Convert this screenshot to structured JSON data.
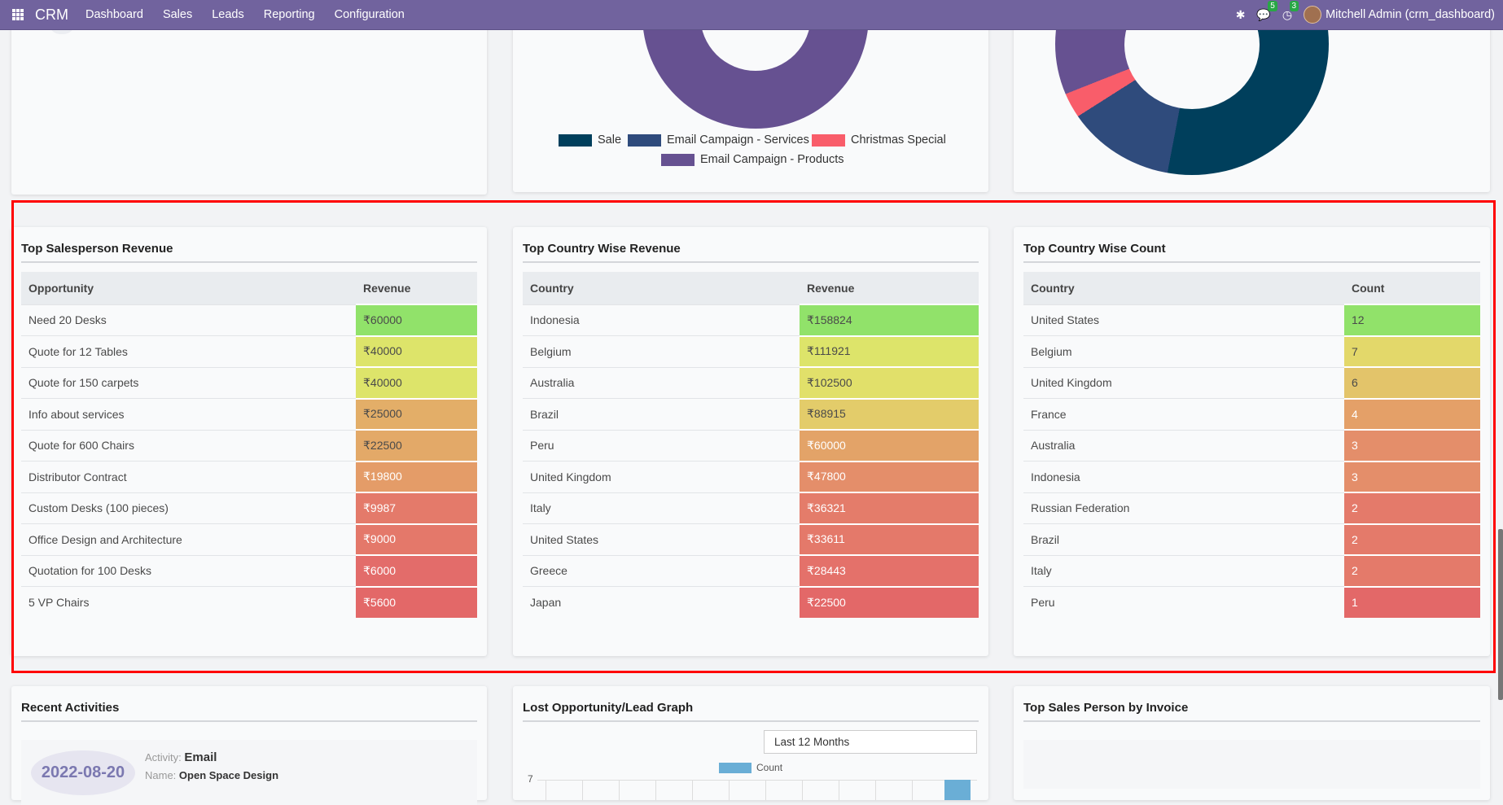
{
  "navbar": {
    "brand": "CRM",
    "menu": [
      "Dashboard",
      "Sales",
      "Leads",
      "Reporting",
      "Configuration"
    ],
    "messages_count": "5",
    "activities_count": "3",
    "user": "Mitchell Admin (crm_dashboard)"
  },
  "top_charts": {
    "campaign_legend": [
      {
        "label": "Sale",
        "color": "#003f5c"
      },
      {
        "label": "Email Campaign - Services",
        "color": "#2f4b7c"
      },
      {
        "label": "Christmas Special",
        "color": "#f95d6a"
      },
      {
        "label": "Email Campaign - Products",
        "color": "#665191"
      }
    ],
    "donut2_color": "#665191",
    "donut3_shares": [
      {
        "color": "#003f5c",
        "share": 0.53
      },
      {
        "color": "#2f4b7c",
        "share": 0.13
      },
      {
        "color": "#f95d6a",
        "share": 0.03
      },
      {
        "color": "#665191",
        "share": 0.31
      }
    ]
  },
  "tables": [
    {
      "title": "Top Salesperson Revenue",
      "headers": [
        "Opportunity",
        "Revenue"
      ],
      "rows": [
        {
          "name": "Need 20 Desks",
          "value": "₹60000",
          "bg": "#91e26a",
          "fg": "#4a4a4a"
        },
        {
          "name": "Quote for 12 Tables",
          "value": "₹40000",
          "bg": "#dde46a",
          "fg": "#4a4a4a"
        },
        {
          "name": "Quote for 150 carpets",
          "value": "₹40000",
          "bg": "#dde46a",
          "fg": "#4a4a4a"
        },
        {
          "name": "Info about services",
          "value": "₹25000",
          "bg": "#e3ae68",
          "fg": "#4a4a4a"
        },
        {
          "name": "Quote for 600 Chairs",
          "value": "₹22500",
          "bg": "#e3a968",
          "fg": "#4a4a4a"
        },
        {
          "name": "Distributor Contract",
          "value": "₹19800",
          "bg": "#e49c68",
          "fg": "#ffffff"
        },
        {
          "name": "Custom Desks (100 pieces)",
          "value": "₹9987",
          "bg": "#e47a6a",
          "fg": "#ffffff"
        },
        {
          "name": "Office Design and Architecture",
          "value": "₹9000",
          "bg": "#e4786a",
          "fg": "#ffffff"
        },
        {
          "name": "Quotation for 100 Desks",
          "value": "₹6000",
          "bg": "#e36c6a",
          "fg": "#ffffff"
        },
        {
          "name": "5 VP Chairs",
          "value": "₹5600",
          "bg": "#e36868",
          "fg": "#ffffff"
        }
      ]
    },
    {
      "title": "Top Country Wise Revenue",
      "headers": [
        "Country",
        "Revenue"
      ],
      "rows": [
        {
          "name": "Indonesia",
          "value": "₹158824",
          "bg": "#91e26a",
          "fg": "#4a4a4a"
        },
        {
          "name": "Belgium",
          "value": "₹111921",
          "bg": "#dde46a",
          "fg": "#4a4a4a"
        },
        {
          "name": "Australia",
          "value": "₹102500",
          "bg": "#e1e06a",
          "fg": "#4a4a4a"
        },
        {
          "name": "Brazil",
          "value": "₹88915",
          "bg": "#e3cc6a",
          "fg": "#4a4a4a"
        },
        {
          "name": "Peru",
          "value": "₹60000",
          "bg": "#e3a368",
          "fg": "#ffffff"
        },
        {
          "name": "United Kingdom",
          "value": "₹47800",
          "bg": "#e48e6a",
          "fg": "#ffffff"
        },
        {
          "name": "Italy",
          "value": "₹36321",
          "bg": "#e47c6a",
          "fg": "#ffffff"
        },
        {
          "name": "United States",
          "value": "₹33611",
          "bg": "#e4796a",
          "fg": "#ffffff"
        },
        {
          "name": "Greece",
          "value": "₹28443",
          "bg": "#e4716a",
          "fg": "#ffffff"
        },
        {
          "name": "Japan",
          "value": "₹22500",
          "bg": "#e36868",
          "fg": "#ffffff"
        }
      ]
    },
    {
      "title": "Top Country Wise Count",
      "headers": [
        "Country",
        "Count"
      ],
      "rows": [
        {
          "name": "United States",
          "value": "12",
          "bg": "#91e26a",
          "fg": "#4a4a4a"
        },
        {
          "name": "Belgium",
          "value": "7",
          "bg": "#e3d86a",
          "fg": "#4a4a4a"
        },
        {
          "name": "United Kingdom",
          "value": "6",
          "bg": "#e3c46a",
          "fg": "#4a4a4a"
        },
        {
          "name": "France",
          "value": "4",
          "bg": "#e4a068",
          "fg": "#ffffff"
        },
        {
          "name": "Australia",
          "value": "3",
          "bg": "#e48e6a",
          "fg": "#ffffff"
        },
        {
          "name": "Indonesia",
          "value": "3",
          "bg": "#e48e6a",
          "fg": "#ffffff"
        },
        {
          "name": "Russian Federation",
          "value": "2",
          "bg": "#e47a6a",
          "fg": "#ffffff"
        },
        {
          "name": "Brazil",
          "value": "2",
          "bg": "#e47a6a",
          "fg": "#ffffff"
        },
        {
          "name": "Italy",
          "value": "2",
          "bg": "#e47a6a",
          "fg": "#ffffff"
        },
        {
          "name": "Peru",
          "value": "1",
          "bg": "#e36868",
          "fg": "#ffffff"
        }
      ]
    }
  ],
  "recent_activities": {
    "title": "Recent Activities",
    "date": "2022-08-20",
    "activity_label": "Activity:",
    "activity": "Email",
    "name_label": "Name:",
    "name": "Open Space Design"
  },
  "lost_graph": {
    "title": "Lost Opportunity/Lead Graph",
    "period": "Last 12 Months",
    "legend": "Count",
    "legend_color": "#6aaed6",
    "y_tick_top": "7"
  },
  "top_invoice": {
    "title": "Top Sales Person by Invoice"
  }
}
